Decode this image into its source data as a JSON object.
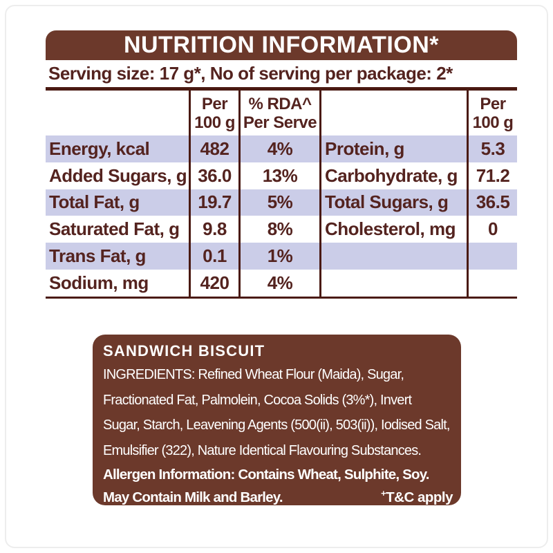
{
  "colors": {
    "brown": "#6C392B",
    "text_maroon": "#54231F",
    "table_border": "#4A1A12",
    "row_lavender": "#CBCDE8",
    "white": "#FFFFFF"
  },
  "header": {
    "title": "NUTRITION INFORMATION*",
    "serving_line": "Serving size: 17 g*, No of serving per package: 2*"
  },
  "table": {
    "col_headers": {
      "per100_line1": "Per",
      "per100_line2": "100 g",
      "rda_line1": "% RDA^",
      "rda_line2": "Per Serve",
      "per100_right_line1": "Per",
      "per100_right_line2": "100 g"
    },
    "rows": [
      {
        "label": "Energy, kcal",
        "per100": "482",
        "rda": "4%",
        "right_label": "Protein, g",
        "right_per100": "5.3"
      },
      {
        "label": "Added Sugars, g",
        "per100": "36.0",
        "rda": "13%",
        "right_label": "Carbohydrate, g",
        "right_per100": "71.2"
      },
      {
        "label": "Total Fat, g",
        "per100": "19.7",
        "rda": "5%",
        "right_label": "Total Sugars, g",
        "right_per100": "36.5"
      },
      {
        "label": "Saturated Fat, g",
        "per100": "9.8",
        "rda": "8%",
        "right_label": "Cholesterol, mg",
        "right_per100": "0"
      },
      {
        "label": "Trans Fat, g",
        "per100": "0.1",
        "rda": "1%",
        "right_label": "",
        "right_per100": ""
      },
      {
        "label": "Sodium, mg",
        "per100": "420",
        "rda": "4%",
        "right_label": "",
        "right_per100": ""
      }
    ]
  },
  "info_box": {
    "product_title": "SANDWICH BISCUIT",
    "ingredients_lines": [
      "INGREDIENTS: Refined Wheat Flour (Maida), Sugar,",
      "Fractionated Fat, Palmolein, Cocoa Solids (3%*), Invert",
      "Sugar, Starch, Leavening Agents (500(ii), 503(ii)), Iodised Salt,",
      "Emulsifier (322), Nature Identical Flavouring Substances."
    ],
    "allergen_line1": "Allergen Information: Contains Wheat, Sulphite, Soy.",
    "allergen_line2": "May Contain Milk and Barley.",
    "tc_sup": "+",
    "tc_label": "T&C apply"
  }
}
